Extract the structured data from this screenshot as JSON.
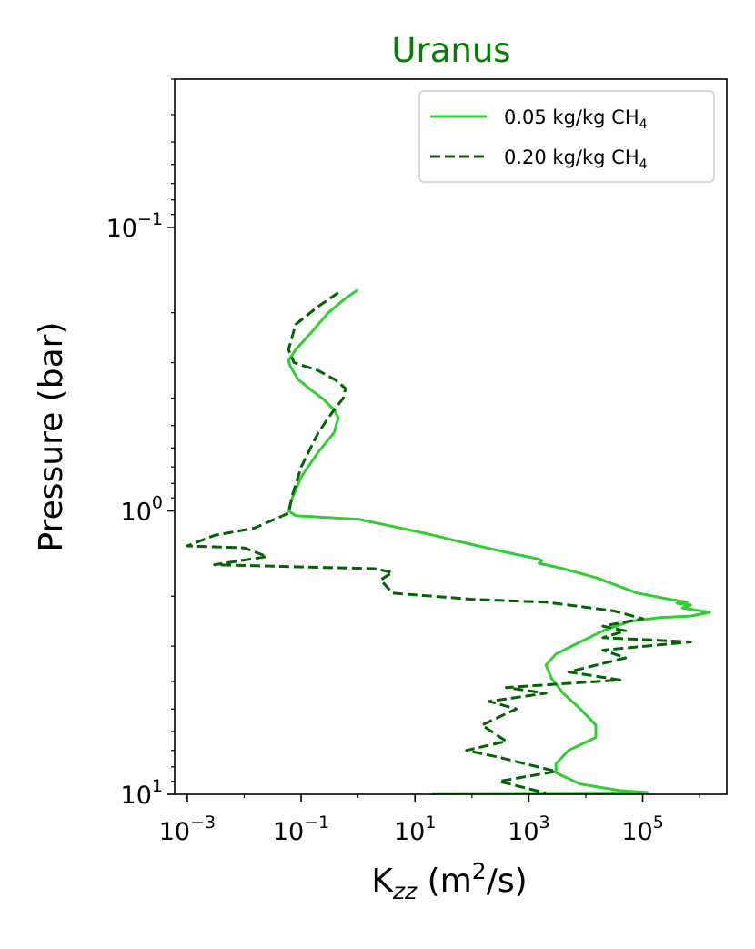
{
  "chart_data": {
    "type": "line",
    "title": "Uranus",
    "xlabel": {
      "main": "K",
      "sub": "zz",
      "units": " (m",
      "sup": "2",
      "tail": "/s)"
    },
    "ylabel": "Pressure (bar)",
    "xscale": "log",
    "yscale": "log",
    "yinverted": true,
    "xlim": [
      0.0006,
      3000000
    ],
    "ylim": [
      10,
      0.03
    ],
    "xticks": [
      {
        "value": 0.001,
        "base": "10",
        "exp": "−3"
      },
      {
        "value": 0.1,
        "base": "10",
        "exp": "−1"
      },
      {
        "value": 10,
        "base": "10",
        "exp": "1"
      },
      {
        "value": 1000,
        "base": "10",
        "exp": "3"
      },
      {
        "value": 100000,
        "base": "10",
        "exp": "5"
      }
    ],
    "yticks": [
      {
        "value": 0.1,
        "base": "10",
        "exp": "−1"
      },
      {
        "value": 1,
        "base": "10",
        "exp": "0"
      },
      {
        "value": 10,
        "base": "10",
        "exp": "1"
      }
    ],
    "legend_position": "top-right",
    "colors": {
      "title": "#008000",
      "series1": "#32cd32",
      "series2": "#006400"
    },
    "series": [
      {
        "name": "0.05 kg/kg CH4",
        "legend_text": "0.05 kg/kg CH",
        "legend_sub": "4",
        "style": "solid",
        "points": [
          [
            1,
            0.166
          ],
          [
            0.6,
            0.178
          ],
          [
            0.3,
            0.2
          ],
          [
            0.15,
            0.235
          ],
          [
            0.08,
            0.27
          ],
          [
            0.06,
            0.295
          ],
          [
            0.065,
            0.31
          ],
          [
            0.09,
            0.345
          ],
          [
            0.15,
            0.375
          ],
          [
            0.25,
            0.405
          ],
          [
            0.38,
            0.44
          ],
          [
            0.45,
            0.47
          ],
          [
            0.38,
            0.53
          ],
          [
            0.2,
            0.62
          ],
          [
            0.1,
            0.76
          ],
          [
            0.07,
            0.9
          ],
          [
            0.06,
            1.0
          ],
          [
            0.08,
            1.04
          ],
          [
            1.0,
            1.07
          ],
          [
            3,
            1.12
          ],
          [
            15,
            1.2
          ],
          [
            80,
            1.3
          ],
          [
            400,
            1.4
          ],
          [
            1500,
            1.48
          ],
          [
            1700,
            1.5
          ],
          [
            1500,
            1.53
          ],
          [
            4000,
            1.6
          ],
          [
            15000,
            1.72
          ],
          [
            80000,
            1.95
          ],
          [
            300000,
            2.05
          ],
          [
            600000,
            2.1
          ],
          [
            400000,
            2.12
          ],
          [
            700000,
            2.15
          ],
          [
            500000,
            2.2
          ],
          [
            1500000,
            2.28
          ],
          [
            700000,
            2.35
          ],
          [
            200000,
            2.38
          ],
          [
            60000,
            2.45
          ],
          [
            20000,
            2.65
          ],
          [
            8000,
            2.9
          ],
          [
            3000,
            3.2
          ],
          [
            2000,
            3.5
          ],
          [
            2500,
            3.9
          ],
          [
            4000,
            4.4
          ],
          [
            8000,
            5.0
          ],
          [
            15000,
            5.7
          ],
          [
            15000,
            6.3
          ],
          [
            5000,
            7.0
          ],
          [
            3000,
            7.8
          ],
          [
            3000,
            8.4
          ],
          [
            8000,
            9.2
          ],
          [
            40000,
            9.7
          ],
          [
            120000,
            9.85
          ],
          [
            20000,
            9.9
          ],
          [
            20,
            9.95
          ]
        ]
      },
      {
        "name": "0.20 kg/kg CH4",
        "legend_text": "0.20 kg/kg CH",
        "legend_sub": "4",
        "style": "dashed",
        "points": [
          [
            0.45,
            0.17
          ],
          [
            0.2,
            0.19
          ],
          [
            0.08,
            0.22
          ],
          [
            0.06,
            0.27
          ],
          [
            0.075,
            0.3
          ],
          [
            0.2,
            0.32
          ],
          [
            0.4,
            0.345
          ],
          [
            0.6,
            0.37
          ],
          [
            0.55,
            0.4
          ],
          [
            0.35,
            0.45
          ],
          [
            0.2,
            0.53
          ],
          [
            0.1,
            0.7
          ],
          [
            0.07,
            0.88
          ],
          [
            0.06,
            1.02
          ],
          [
            0.015,
            1.15
          ],
          [
            0.003,
            1.22
          ],
          [
            0.001,
            1.33
          ],
          [
            0.01,
            1.35
          ],
          [
            0.025,
            1.45
          ],
          [
            0.003,
            1.55
          ],
          [
            2,
            1.6
          ],
          [
            4,
            1.65
          ],
          [
            2.5,
            1.75
          ],
          [
            4,
            1.95
          ],
          [
            100,
            2.05
          ],
          [
            2000,
            2.1
          ],
          [
            30000,
            2.25
          ],
          [
            100000,
            2.4
          ],
          [
            20000,
            2.55
          ],
          [
            50000,
            2.65
          ],
          [
            20000,
            2.8
          ],
          [
            700000,
            2.9
          ],
          [
            20000,
            3.1
          ],
          [
            50000,
            3.3
          ],
          [
            5000,
            3.7
          ],
          [
            40000,
            3.95
          ],
          [
            400,
            4.2
          ],
          [
            2000,
            4.4
          ],
          [
            200,
            4.7
          ],
          [
            600,
            5.0
          ],
          [
            150,
            5.7
          ],
          [
            400,
            6.5
          ],
          [
            80,
            7.0
          ],
          [
            300,
            7.4
          ],
          [
            3000,
            8.3
          ],
          [
            300,
            9.0
          ],
          [
            2000,
            9.9
          ]
        ]
      }
    ]
  }
}
